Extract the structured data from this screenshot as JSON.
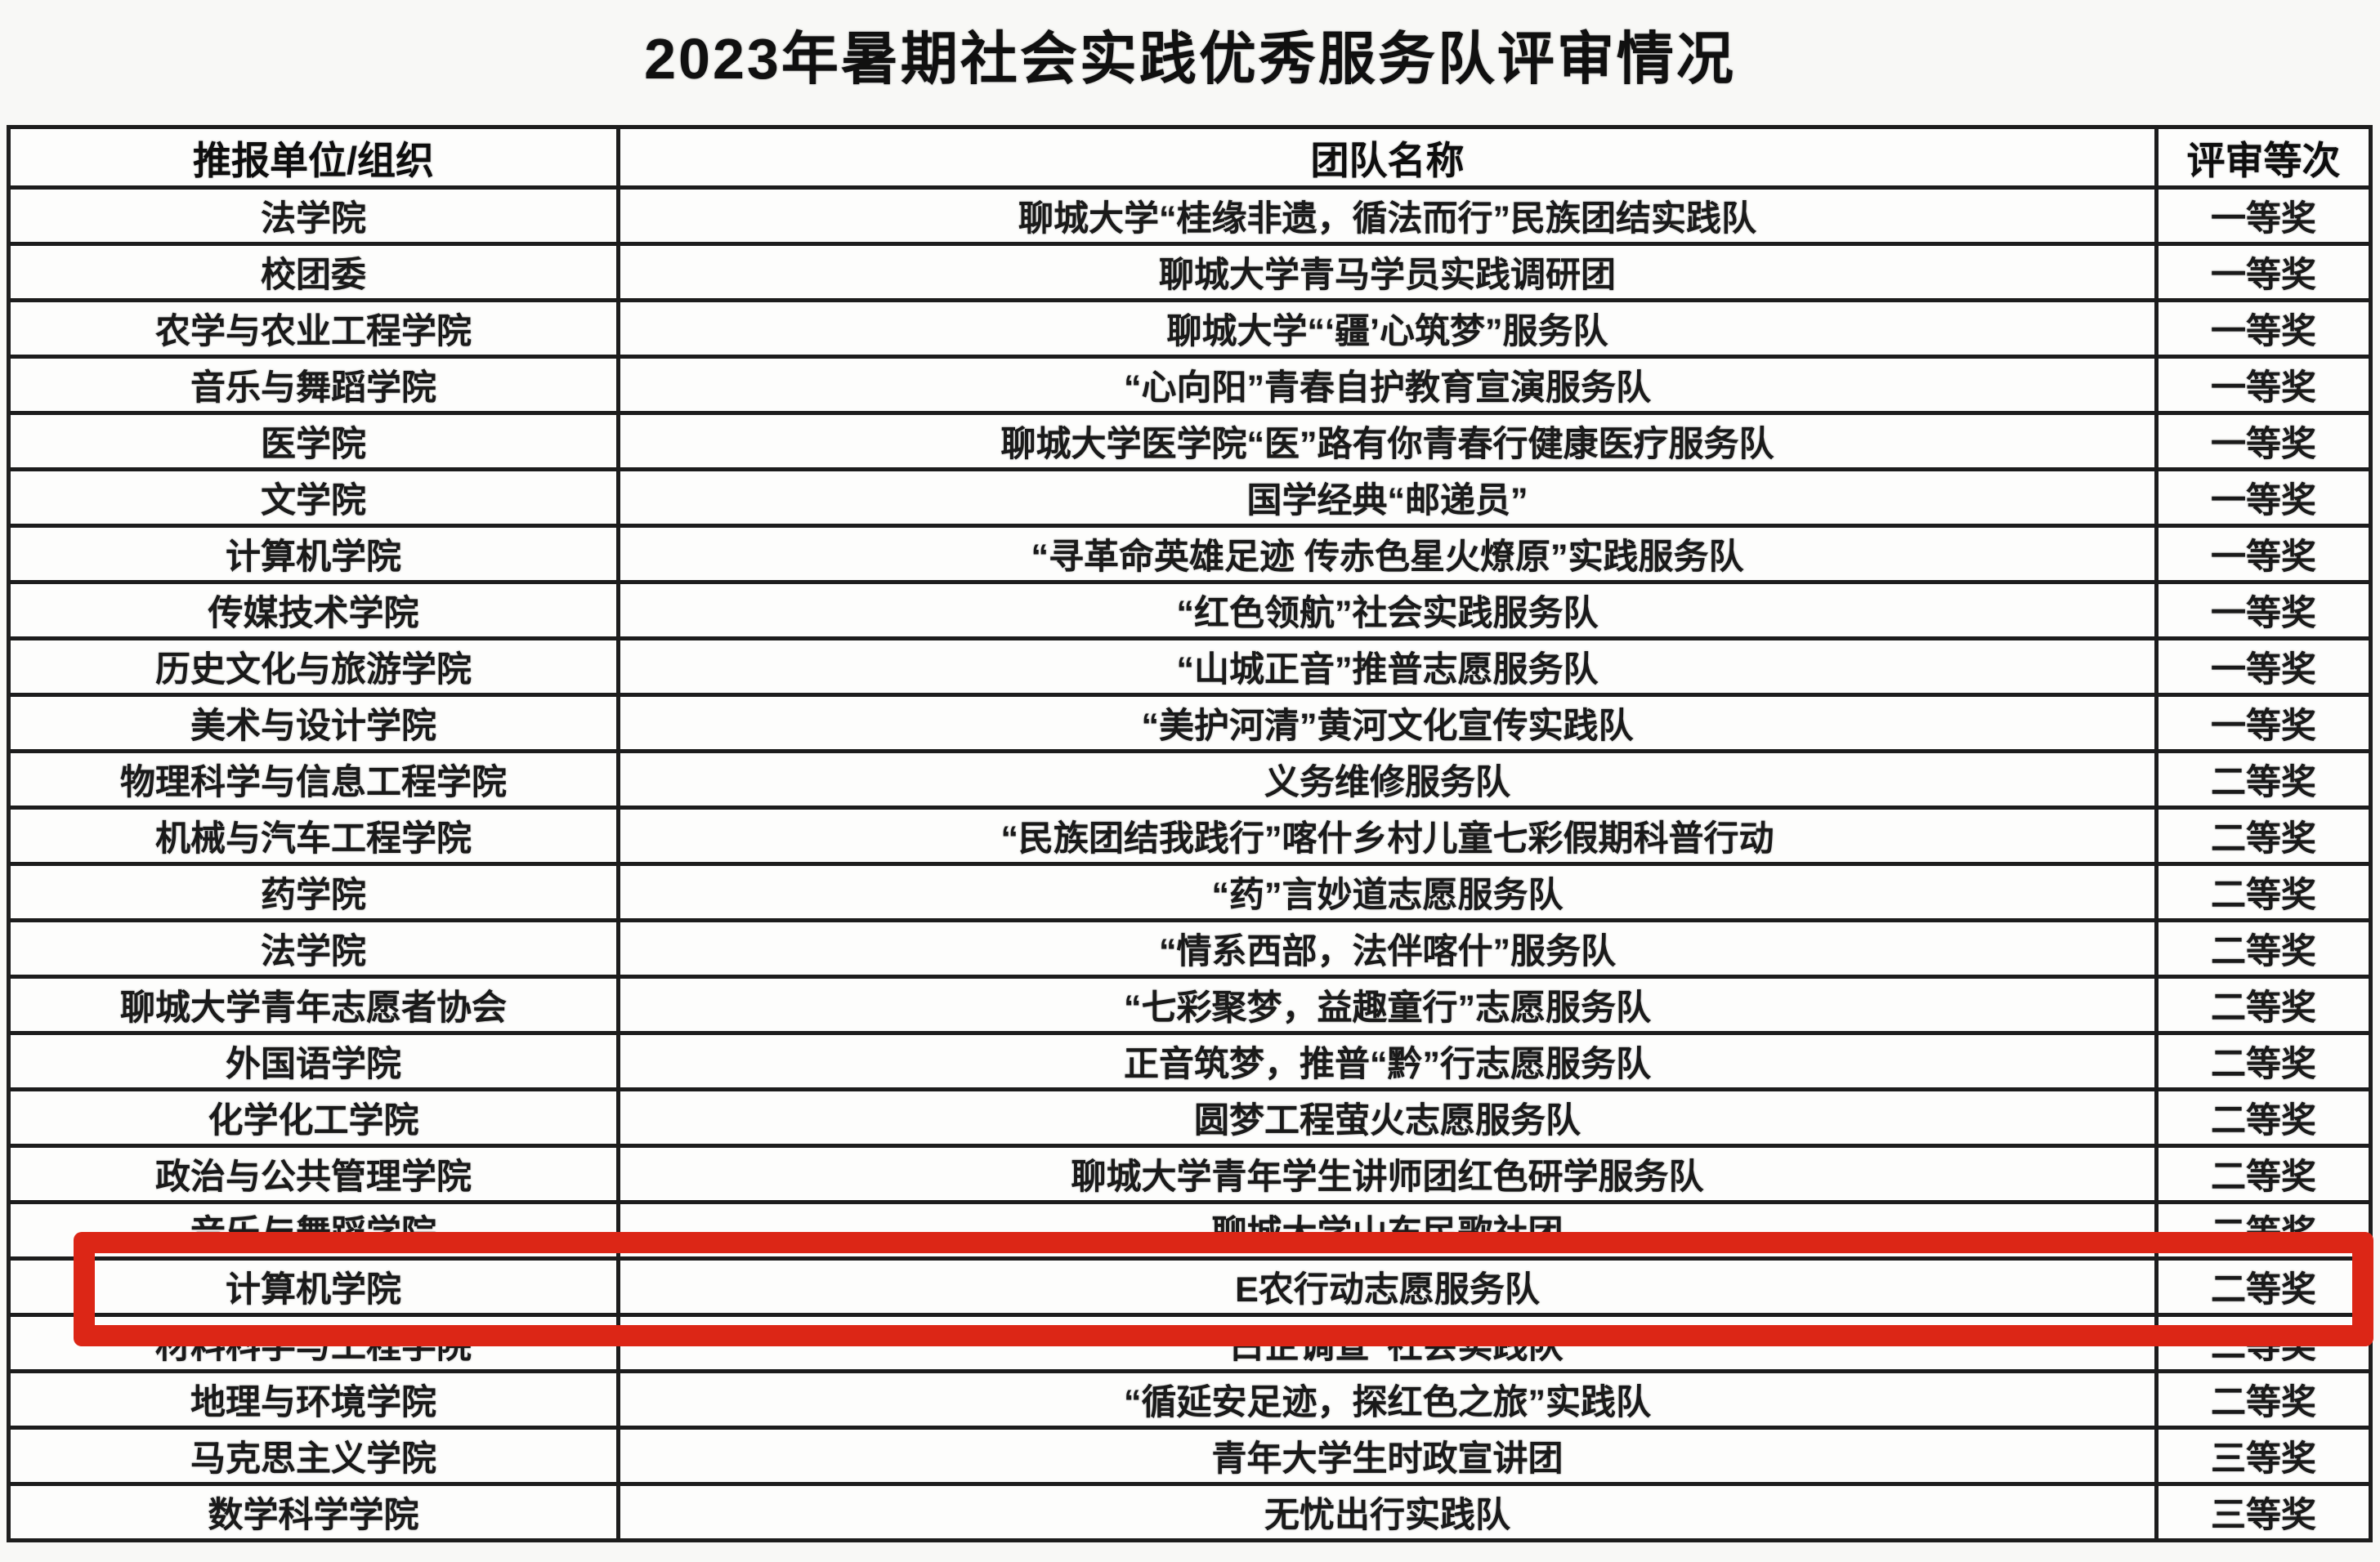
{
  "title": "2023年暑期社会实践优秀服务队评审情况",
  "table": {
    "headers": {
      "unit": "推报单位/组织",
      "team": "团队名称",
      "grade": "评审等次"
    },
    "rows": [
      {
        "unit": "法学院",
        "team": "聊城大学“桂缘非遗，循法而行”民族团结实践队",
        "grade": "一等奖"
      },
      {
        "unit": "校团委",
        "team": "聊城大学青马学员实践调研团",
        "grade": "一等奖"
      },
      {
        "unit": "农学与农业工程学院",
        "team": "聊城大学“‘疆’心筑梦”服务队",
        "grade": "一等奖"
      },
      {
        "unit": "音乐与舞蹈学院",
        "team": "“心向阳”青春自护教育宣演服务队",
        "grade": "一等奖"
      },
      {
        "unit": "医学院",
        "team": "聊城大学医学院“医”路有你青春行健康医疗服务队",
        "grade": "一等奖"
      },
      {
        "unit": "文学院",
        "team": "国学经典“邮递员”",
        "grade": "一等奖"
      },
      {
        "unit": "计算机学院",
        "team": "“寻革命英雄足迹 传赤色星火燎原”实践服务队",
        "grade": "一等奖"
      },
      {
        "unit": "传媒技术学院",
        "team": "“红色领航”社会实践服务队",
        "grade": "一等奖"
      },
      {
        "unit": "历史文化与旅游学院",
        "team": "“山城正音”推普志愿服务队",
        "grade": "一等奖"
      },
      {
        "unit": "美术与设计学院",
        "team": "“美护河清”黄河文化宣传实践队",
        "grade": "一等奖"
      },
      {
        "unit": "物理科学与信息工程学院",
        "team": "义务维修服务队",
        "grade": "二等奖"
      },
      {
        "unit": "机械与汽车工程学院",
        "team": "“民族团结我践行”喀什乡村儿童七彩假期科普行动",
        "grade": "二等奖"
      },
      {
        "unit": "药学院",
        "team": "“药”言妙道志愿服务队",
        "grade": "二等奖"
      },
      {
        "unit": "法学院",
        "team": "“情系西部，法伴喀什”服务队",
        "grade": "二等奖"
      },
      {
        "unit": "聊城大学青年志愿者协会",
        "team": "“七彩聚梦，益趣童行”志愿服务队",
        "grade": "二等奖"
      },
      {
        "unit": "外国语学院",
        "team": "正音筑梦，推普“黔”行志愿服务队",
        "grade": "二等奖"
      },
      {
        "unit": "化学化工学院",
        "team": "圆梦工程萤火志愿服务队",
        "grade": "二等奖"
      },
      {
        "unit": "政治与公共管理学院",
        "team": "聊城大学青年学生讲师团红色研学服务队",
        "grade": "二等奖"
      },
      {
        "unit": "音乐与舞蹈学院",
        "team": "聊城大学山东民歌社团",
        "grade": "二等奖"
      },
      {
        "unit": "计算机学院",
        "team": "E农行动志愿服务队",
        "grade": "二等奖"
      },
      {
        "unit": "材料科学与工程学院",
        "team": "“白企调查”社会实践队",
        "grade": "二等奖"
      },
      {
        "unit": "地理与环境学院",
        "team": "“循延安足迹，探红色之旅”实践队",
        "grade": "二等奖"
      },
      {
        "unit": "马克思主义学院",
        "team": "青年大学生时政宣讲团",
        "grade": "三等奖"
      },
      {
        "unit": "数学科学学院",
        "team": "无忧出行实践队",
        "grade": "三等奖"
      }
    ]
  },
  "highlight": {
    "row_number": 20,
    "unit": "计算机学院",
    "team": "E农行动志愿服务队",
    "grade": "二等奖",
    "color": "#dc2616"
  }
}
